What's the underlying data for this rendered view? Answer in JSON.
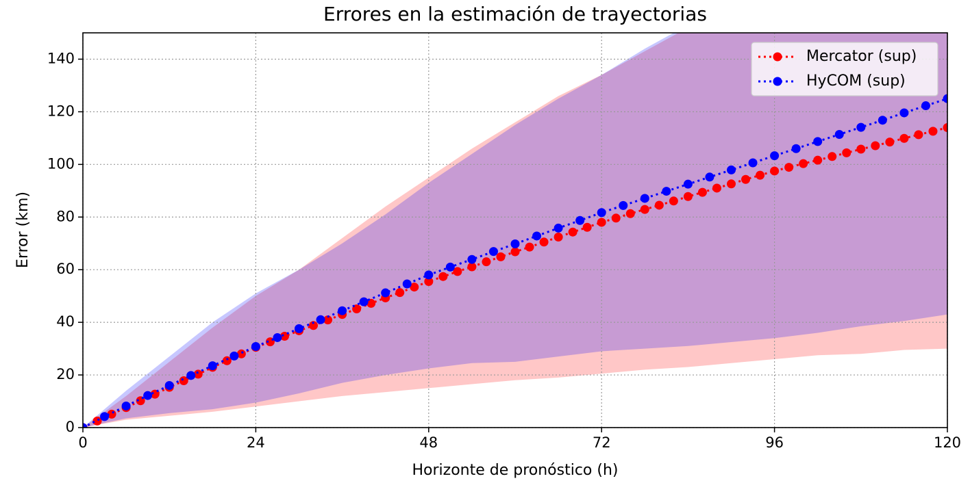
{
  "chart_data": {
    "type": "line",
    "title": "Errores en la estimación de trayectorias",
    "xlabel": "Horizonte de pronóstico (h)",
    "ylabel": "Error (km)",
    "xlim": [
      0,
      120
    ],
    "ylim": [
      0,
      150
    ],
    "xticks": [
      0,
      24,
      48,
      72,
      96,
      120
    ],
    "yticks": [
      0,
      20,
      40,
      60,
      80,
      100,
      120,
      140
    ],
    "grid": true,
    "legend": "upper right",
    "band_alpha": 0.22,
    "band_x": [
      0,
      6,
      12,
      18,
      24,
      30,
      36,
      42,
      48,
      54,
      60,
      66,
      72,
      78,
      84,
      90,
      96,
      102,
      108,
      114,
      120
    ],
    "series": [
      {
        "name": "Mercator (sup)",
        "color": "#ff0000",
        "x": [
          0,
          2,
          4,
          6,
          8,
          10,
          12,
          14,
          16,
          18,
          20,
          22,
          24,
          26,
          28,
          30,
          32,
          34,
          36,
          38,
          40,
          42,
          44,
          46,
          48,
          50,
          52,
          54,
          56,
          58,
          60,
          62,
          64,
          66,
          68,
          70,
          72,
          74,
          76,
          78,
          80,
          82,
          84,
          86,
          88,
          90,
          92,
          94,
          96,
          98,
          100,
          102,
          104,
          106,
          108,
          110,
          112,
          114,
          116,
          118,
          120
        ],
        "values": [
          0,
          2.5,
          5.1,
          7.6,
          10.2,
          12.7,
          15.3,
          17.8,
          20.3,
          22.9,
          25.4,
          28.0,
          30.5,
          32.6,
          34.7,
          36.8,
          38.8,
          40.9,
          43.0,
          45.1,
          47.2,
          49.3,
          51.3,
          53.4,
          55.5,
          57.4,
          59.3,
          61.1,
          63.0,
          64.9,
          66.8,
          68.6,
          70.5,
          72.4,
          74.3,
          76.1,
          78.0,
          79.6,
          81.3,
          82.9,
          84.5,
          86.1,
          87.8,
          89.4,
          91.0,
          92.6,
          94.3,
          95.9,
          97.5,
          98.9,
          100.3,
          101.6,
          103.0,
          104.4,
          105.8,
          107.1,
          108.5,
          109.9,
          111.3,
          112.6,
          114.0
        ],
        "band_lower": [
          0,
          3,
          4.5,
          6,
          8,
          10,
          12,
          13.5,
          15,
          16.5,
          18,
          19,
          20.5,
          22,
          23,
          24.5,
          26,
          27.5,
          28,
          29.5,
          30
        ],
        "band_upper": [
          0,
          12,
          25,
          38,
          50,
          60,
          72,
          84,
          95,
          106,
          116,
          126,
          134,
          143,
          152,
          160,
          168,
          176,
          184,
          192,
          200
        ]
      },
      {
        "name": "HyCOM (sup)",
        "color": "#0000ff",
        "x": [
          0,
          3,
          6,
          9,
          12,
          15,
          18,
          21,
          24,
          27,
          30,
          33,
          36,
          39,
          42,
          45,
          48,
          51,
          54,
          57,
          60,
          63,
          66,
          69,
          72,
          75,
          78,
          81,
          84,
          87,
          90,
          93,
          96,
          99,
          102,
          105,
          108,
          111,
          114,
          117,
          120
        ],
        "values": [
          0,
          4.2,
          8.2,
          12.2,
          16.0,
          19.8,
          23.5,
          27.2,
          30.8,
          34.2,
          37.6,
          41.0,
          44.4,
          47.8,
          51.2,
          54.6,
          58.0,
          61.0,
          63.9,
          66.9,
          69.8,
          72.8,
          75.8,
          78.7,
          81.7,
          84.4,
          87.1,
          89.8,
          92.5,
          95.2,
          97.9,
          100.6,
          103.3,
          106.0,
          108.7,
          111.4,
          114.1,
          116.8,
          119.6,
          122.3,
          125.0
        ],
        "band_lower": [
          0,
          3.5,
          5.5,
          7,
          9.5,
          13,
          17,
          20,
          22.5,
          24.5,
          25,
          27,
          29,
          30,
          31,
          32.5,
          34,
          36,
          38.5,
          40.5,
          43
        ],
        "band_upper": [
          0,
          14,
          27,
          40,
          51,
          60,
          70,
          81,
          93,
          104,
          115,
          125,
          134,
          144,
          153,
          161,
          169,
          177,
          185,
          193,
          201
        ]
      }
    ]
  }
}
